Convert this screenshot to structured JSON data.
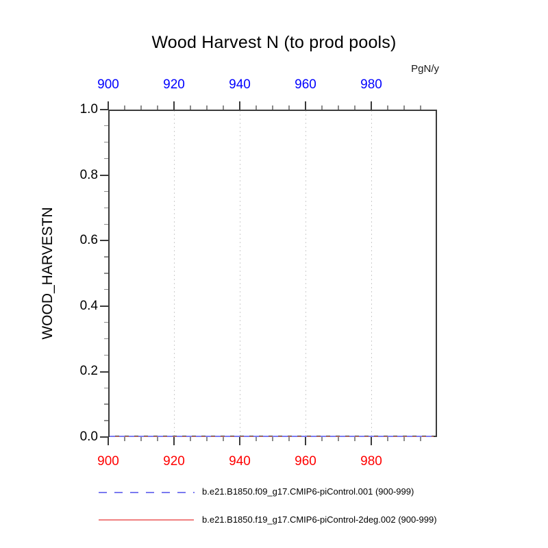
{
  "title": "Wood Harvest N (to prod pools)",
  "top_axis_unit": "PgN/y",
  "y_axis_title": "WOOD_HARVESTN",
  "colors": {
    "axis_frame": "#3a3a3a",
    "grid": "#cccccc",
    "top_axis_labels": "#0000ff",
    "bottom_axis_labels": "#ff0000",
    "text": "#000000",
    "series1": "#7a7af0",
    "series2": "#f08080"
  },
  "chart_data": {
    "type": "line",
    "title": "Wood Harvest N (to prod pools)",
    "xlabel": "",
    "ylabel": "WOOD_HARVESTN",
    "top_axis_unit": "PgN/y",
    "xlim": [
      900,
      1000
    ],
    "ylim": [
      0.0,
      1.0
    ],
    "x_major_ticks": [
      900,
      920,
      940,
      960,
      980
    ],
    "x_minor_step": 5,
    "y_major_ticks": [
      0.0,
      0.2,
      0.4,
      0.6,
      0.8,
      1.0
    ],
    "y_tick_labels": [
      "0.0",
      "0.2",
      "0.4",
      "0.6",
      "0.8",
      "1.0"
    ],
    "y_minor_step": 0.05,
    "grid_x_values": [
      920,
      940,
      960,
      980
    ],
    "grid": "vertical-dotted",
    "legend_position": "bottom",
    "series": [
      {
        "name": "b.e21.B1850.f09_g17.CMIP6-piControl.001 (900-999)",
        "style": "dashed",
        "color": "#7a7af0",
        "x_range": [
          900,
          999
        ],
        "approx_constant_value": 0.0
      },
      {
        "name": "b.e21.B1850.f19_g17.CMIP6-piControl-2deg.002 (900-999)",
        "style": "solid",
        "color": "#f08080",
        "x_range": [
          900,
          999
        ],
        "approx_constant_value": 0.0
      }
    ]
  },
  "legend": {
    "item1_label": "b.e21.B1850.f09_g17.CMIP6-piControl.001 (900-999)",
    "item2_label": "b.e21.B1850.f19_g17.CMIP6-piControl-2deg.002 (900-999)"
  }
}
